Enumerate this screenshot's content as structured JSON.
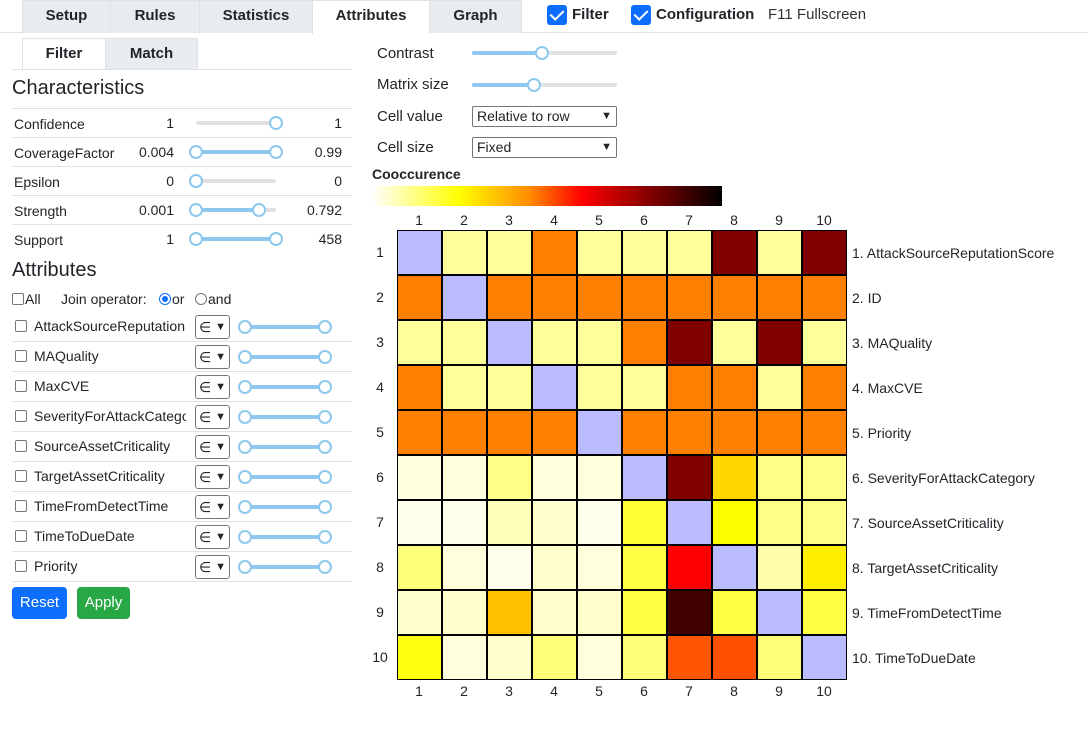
{
  "tabs": [
    {
      "label": "Setup",
      "active": false
    },
    {
      "label": "Rules",
      "active": false
    },
    {
      "label": "Statistics",
      "active": false
    },
    {
      "label": "Attributes",
      "active": true
    },
    {
      "label": "Graph",
      "active": false
    }
  ],
  "header": {
    "filter_label": "Filter",
    "configuration_label": "Configuration",
    "fullscreen_hint": "F11 Fullscreen",
    "accent_color": "#0d6efd"
  },
  "subtabs": [
    {
      "label": "Filter",
      "active": true
    },
    {
      "label": "Match",
      "active": false
    }
  ],
  "characteristics": {
    "title": "Characteristics",
    "rows": [
      {
        "name": "Confidence",
        "min": "1",
        "max": "1",
        "lo_frac": 1.0,
        "hi_frac": 1.0
      },
      {
        "name": "CoverageFactor",
        "min": "0.004",
        "max": "0.99",
        "lo_frac": 0.0,
        "hi_frac": 1.0
      },
      {
        "name": "Epsilon",
        "min": "0",
        "max": "0",
        "lo_frac": 0.0,
        "hi_frac": 0.0
      },
      {
        "name": "Strength",
        "min": "0.001",
        "max": "0.792",
        "lo_frac": 0.0,
        "hi_frac": 0.79
      },
      {
        "name": "Support",
        "min": "1",
        "max": "458",
        "lo_frac": 0.0,
        "hi_frac": 1.0
      }
    ]
  },
  "attributes": {
    "title": "Attributes",
    "all_label": "All",
    "join_label": "Join operator:",
    "or_label": "or",
    "and_label": "and",
    "operator_symbol": "∈",
    "items": [
      "AttackSourceReputationScore",
      "MAQuality",
      "MaxCVE",
      "SeverityForAttackCategory",
      "SourceAssetCriticality",
      "TargetAssetCriticality",
      "TimeFromDetectTime",
      "TimeToDueDate",
      "Priority"
    ]
  },
  "buttons": {
    "reset": "Reset",
    "apply": "Apply",
    "reset_color": "#0d6efd",
    "apply_color": "#28a745"
  },
  "controls": {
    "contrast_label": "Contrast",
    "contrast_frac": 0.48,
    "matrix_size_label": "Matrix size",
    "matrix_size_frac": 0.43,
    "cell_value_label": "Cell value",
    "cell_value_selected": "Relative to row",
    "cell_size_label": "Cell size",
    "cell_size_selected": "Fixed"
  },
  "matrix": {
    "title": "Cooccurence",
    "col_numbers": [
      "1",
      "2",
      "3",
      "4",
      "5",
      "6",
      "7",
      "8",
      "9",
      "10"
    ],
    "row_labels": [
      "1. AttackSourceReputationScore",
      "2. ID",
      "3. MAQuality",
      "4. MaxCVE",
      "5. Priority",
      "6. SeverityForAttackCategory",
      "7. SourceAssetCriticality",
      "8. TargetAssetCriticality",
      "9. TimeFromDetectTime",
      "10. TimeToDueDate"
    ],
    "colors": [
      [
        "#bbbbff",
        "#ffff99",
        "#ffff99",
        "#ff8000",
        "#ffff99",
        "#ffff99",
        "#ffff99",
        "#800000",
        "#ffff99",
        "#800000"
      ],
      [
        "#ff8000",
        "#bbbbff",
        "#ff8000",
        "#ff8000",
        "#ff8000",
        "#ff8000",
        "#ff8000",
        "#ff8000",
        "#ff8000",
        "#ff8000"
      ],
      [
        "#ffff99",
        "#ffff99",
        "#bbbbff",
        "#ffff99",
        "#ffff99",
        "#ff8000",
        "#800000",
        "#ffff99",
        "#800000",
        "#ffff99"
      ],
      [
        "#ff8000",
        "#ffff99",
        "#ffff99",
        "#bbbbff",
        "#ffff99",
        "#ffff99",
        "#ff8000",
        "#ff8000",
        "#ffff99",
        "#ff8000"
      ],
      [
        "#ff8000",
        "#ff8000",
        "#ff8000",
        "#ff8000",
        "#bbbbff",
        "#ff8000",
        "#ff8000",
        "#ff8000",
        "#ff8000",
        "#ff8000"
      ],
      [
        "#ffffdd",
        "#ffffdd",
        "#ffff88",
        "#ffffdd",
        "#ffffdd",
        "#bbbbff",
        "#800000",
        "#ffd700",
        "#ffff88",
        "#ffff88"
      ],
      [
        "#ffffee",
        "#ffffee",
        "#ffffbb",
        "#ffffcc",
        "#ffffee",
        "#ffff33",
        "#bbbbff",
        "#ffff00",
        "#ffff88",
        "#ffff88"
      ],
      [
        "#ffff77",
        "#ffffdd",
        "#ffffee",
        "#ffffcc",
        "#ffffdd",
        "#ffff44",
        "#ff0000",
        "#bbbbff",
        "#ffffaa",
        "#ffee00"
      ],
      [
        "#ffffcc",
        "#ffffcc",
        "#ffc000",
        "#ffffcc",
        "#ffffcc",
        "#ffff44",
        "#400000",
        "#ffff44",
        "#bbbbff",
        "#ffff44"
      ],
      [
        "#ffff11",
        "#ffffdd",
        "#ffffcc",
        "#ffff77",
        "#ffffdd",
        "#ffff77",
        "#ff5500",
        "#ff5000",
        "#ffff77",
        "#bbbbff"
      ]
    ]
  }
}
